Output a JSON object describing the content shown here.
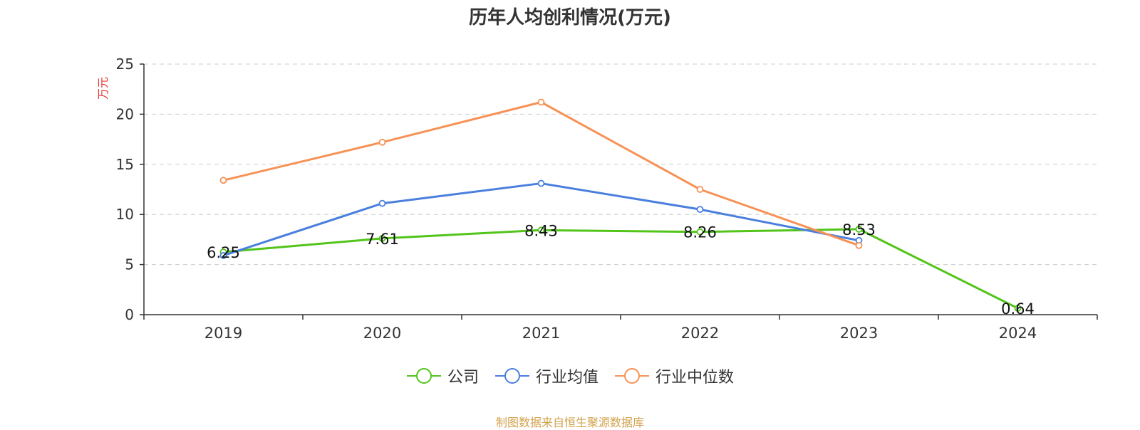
{
  "title": "历年人均创利情况(万元)",
  "source_note": "制图数据来自恒生聚源数据库",
  "chart_data": {
    "type": "line",
    "title": "历年人均创利情况(万元)",
    "xlabel": "",
    "ylabel": "万元",
    "ylim": [
      0,
      25
    ],
    "yticks": [
      0,
      5,
      10,
      15,
      20,
      25
    ],
    "categories": [
      "2019",
      "2020",
      "2021",
      "2022",
      "2023",
      "2024"
    ],
    "grid": true,
    "legend_position": "bottom",
    "series": [
      {
        "name": "公司",
        "color": "#52c41a",
        "show_labels": true,
        "labels": [
          "6.25",
          "7.61",
          "8.43",
          "8.26",
          "8.53",
          "0.64"
        ],
        "values": [
          6.25,
          7.61,
          8.43,
          8.26,
          8.53,
          0.64
        ]
      },
      {
        "name": "行业均值",
        "color": "#4a7fde",
        "show_labels": false,
        "values": [
          5.9,
          11.1,
          13.1,
          10.5,
          7.4,
          null
        ]
      },
      {
        "name": "行业中位数",
        "color": "#f79256",
        "show_labels": false,
        "values": [
          13.4,
          17.2,
          21.2,
          12.5,
          6.9,
          null
        ]
      }
    ]
  }
}
